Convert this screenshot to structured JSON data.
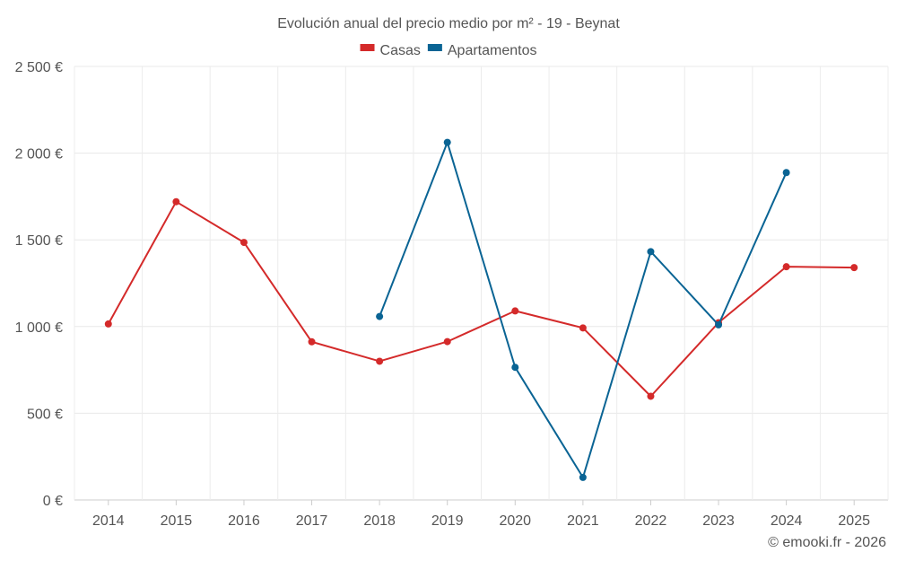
{
  "chart_data": {
    "type": "line",
    "title": "Evolución anual del precio medio por m² - 19 - Beynat",
    "xlabel": "",
    "ylabel": "",
    "categories": [
      "2014",
      "2015",
      "2016",
      "2017",
      "2018",
      "2019",
      "2020",
      "2021",
      "2022",
      "2023",
      "2024",
      "2025"
    ],
    "ylim": [
      0,
      2500
    ],
    "y_ticks": [
      0,
      500,
      1000,
      1500,
      2000,
      2500
    ],
    "y_tick_labels": [
      "0 €",
      "500 €",
      "1 000 €",
      "1 500 €",
      "2 000 €",
      "2 500 €"
    ],
    "grid": true,
    "legend_position": "top-center",
    "series": [
      {
        "name": "Casas",
        "color": "#d42a2a",
        "values": [
          1015,
          1720,
          1485,
          912,
          800,
          913,
          1090,
          992,
          598,
          1022,
          1345,
          1340
        ]
      },
      {
        "name": "Apartamentos",
        "color": "#0a6494",
        "values": [
          null,
          null,
          null,
          null,
          1058,
          2062,
          765,
          130,
          1432,
          1010,
          1888,
          null
        ]
      }
    ],
    "credit": "© emooki.fr - 2026"
  }
}
